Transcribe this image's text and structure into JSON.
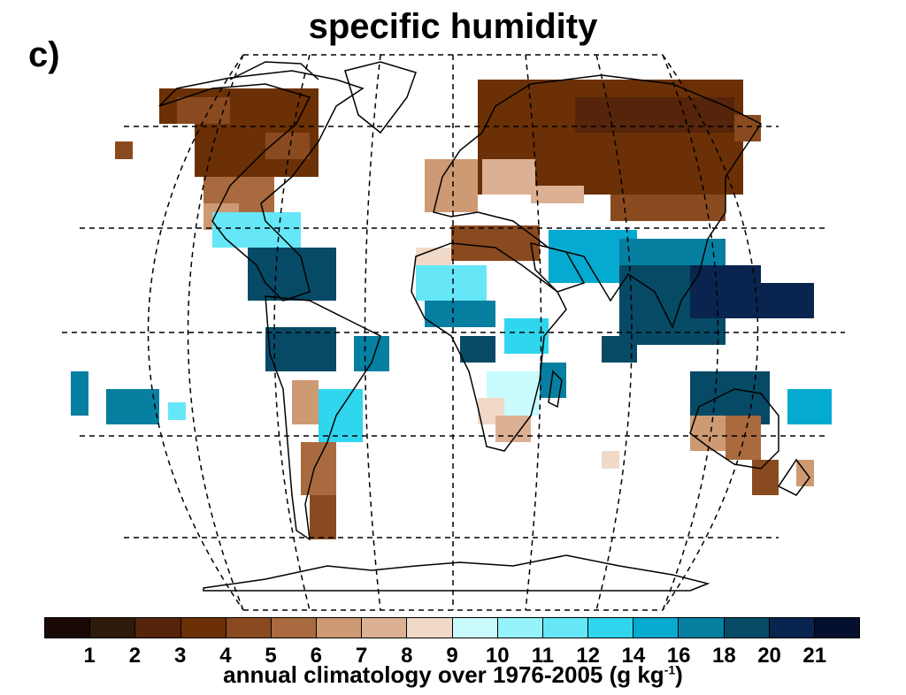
{
  "panel_label": "c)",
  "title": "specific humidity",
  "colorbar": {
    "caption_pre": "annual climatology over 1976-2005 (g kg",
    "caption_sup": "-1",
    "caption_post": ")",
    "tick_labels": [
      "1",
      "2",
      "3",
      "4",
      "5",
      "6",
      "7",
      "8",
      "9",
      "10",
      "11",
      "12",
      "14",
      "16",
      "18",
      "20",
      "21"
    ],
    "colors": [
      "#1a0a05",
      "#2e1a0a",
      "#55240a",
      "#6b3005",
      "#8a4a1f",
      "#a86a3e",
      "#cd9a74",
      "#dcb093",
      "#f1d9c8",
      "#c9fbff",
      "#97f3fb",
      "#66e7f7",
      "#2fd6ee",
      "#05aad0",
      "#067fa1",
      "#064a66",
      "#08244f",
      "#05102e"
    ]
  },
  "chart_data": {
    "type": "heatmap",
    "title": "specific humidity",
    "colorbar_label": "annual climatology over 1976-2005 (g kg-1)",
    "levels": [
      1,
      2,
      3,
      4,
      5,
      6,
      7,
      8,
      9,
      10,
      11,
      12,
      14,
      16,
      18,
      20,
      21
    ],
    "projection": "Robinson-like global map, 5-degree grid cells over land/obs stations",
    "regions": [
      {
        "region": "Arctic / northern Eurasia & North America",
        "class": "brown 3-5"
      },
      {
        "region": "mid-latitude Eurasia & Sahara edge",
        "class": "light tan 6-9"
      },
      {
        "region": "tropics (Caribbean, Amazon, Central Africa, South & SE Asia)",
        "class": "cyan-teal 12-20"
      },
      {
        "region": "southern South America & Australia interior",
        "class": "tan 6-8"
      }
    ]
  }
}
